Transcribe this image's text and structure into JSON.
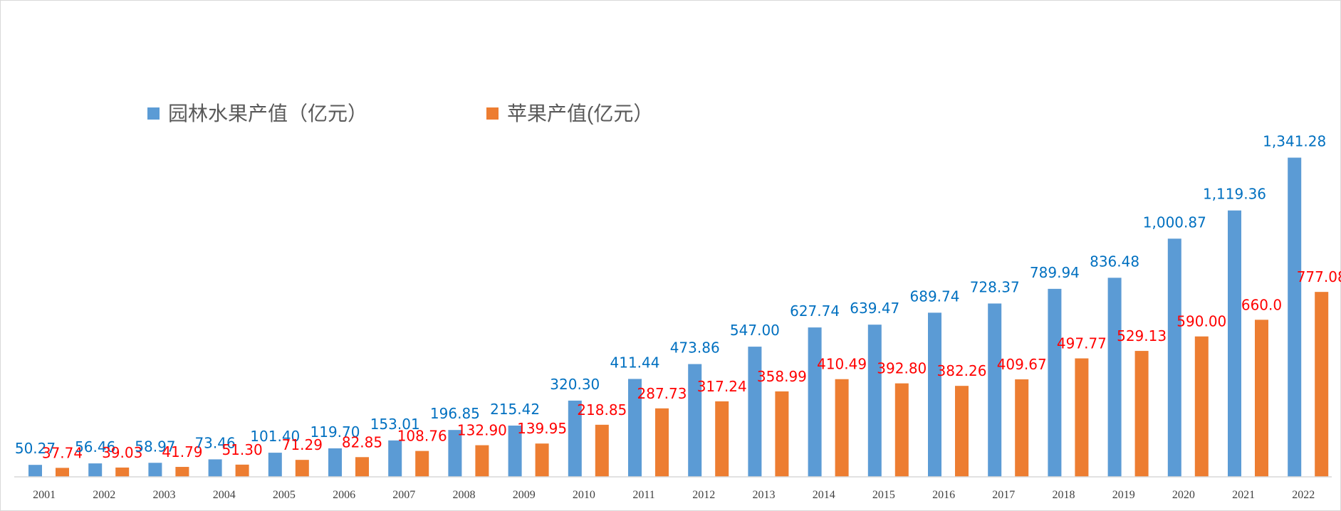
{
  "colors": {
    "series_a": "#5b9bd5",
    "series_b": "#ed7d31",
    "label_a": "#0070c0",
    "label_b": "#ff0000",
    "axis": "#d9d9d9"
  },
  "chart_data": {
    "type": "bar",
    "title": "",
    "xlabel": "",
    "ylabel": "",
    "ylim": [
      0,
      1600
    ],
    "grid": false,
    "legend_position": "top-left",
    "categories": [
      "2001",
      "2002",
      "2003",
      "2004",
      "2005",
      "2006",
      "2007",
      "2008",
      "2009",
      "2010",
      "2011",
      "2012",
      "2013",
      "2014",
      "2015",
      "2016",
      "2017",
      "2018",
      "2019",
      "2020",
      "2021",
      "2022"
    ],
    "series": [
      {
        "name": "园林水果产值（亿元）",
        "values": [
          50.27,
          56.46,
          58.97,
          73.46,
          101.4,
          119.7,
          153.01,
          196.85,
          215.42,
          320.3,
          411.44,
          473.86,
          547.0,
          627.74,
          639.47,
          689.74,
          728.37,
          789.94,
          836.48,
          1000.87,
          1119.36,
          1341.28
        ],
        "labels": [
          "50.27",
          "56.46",
          "58.97",
          "73.46",
          "101.40",
          "119.70",
          "153.01",
          "196.85",
          "215.42",
          "320.30",
          "411.44",
          "473.86",
          "547.00",
          "627.74",
          "639.47",
          "689.74",
          "728.37",
          "789.94",
          "836.48",
          "1,000.87",
          "1,119.36",
          "1,341.28"
        ]
      },
      {
        "name": "苹果产值(亿元）",
        "values": [
          37.74,
          39.03,
          41.79,
          51.3,
          71.29,
          82.85,
          108.76,
          132.9,
          139.95,
          218.85,
          287.73,
          317.24,
          358.99,
          410.49,
          392.8,
          382.26,
          409.67,
          497.77,
          529.13,
          590.0,
          660.0,
          777.08
        ],
        "labels": [
          "37.74",
          "39.03",
          "41.79",
          "51.30",
          "71.29",
          "82.85",
          "108.76",
          "132.90",
          "139.95",
          "218.85",
          "287.73",
          "317.24",
          "358.99",
          "410.49",
          "392.80",
          "382.26",
          "409.67",
          "497.77",
          "529.13",
          "590.00",
          "660.0",
          "777.08"
        ]
      }
    ]
  }
}
